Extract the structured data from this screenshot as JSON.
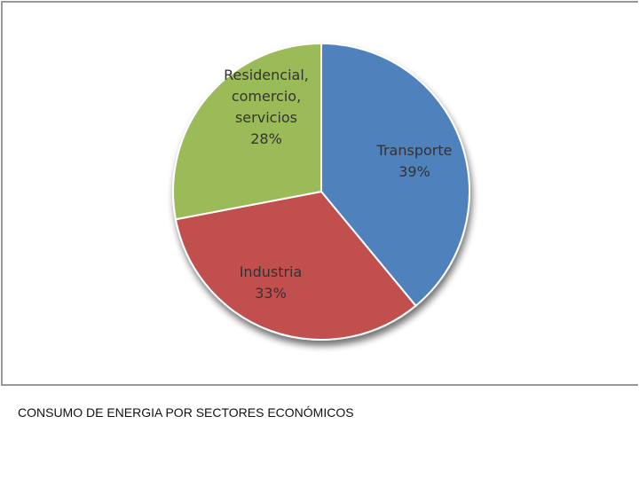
{
  "chart_data": {
    "type": "pie",
    "start_angle_deg": 0,
    "direction": "clockwise",
    "slices": [
      {
        "label_lines": [
          "Transporte",
          "39%"
        ],
        "value": 39,
        "color": "#4f81bd"
      },
      {
        "label_lines": [
          "Industria",
          "33%"
        ],
        "value": 33,
        "color": "#c0504d"
      },
      {
        "label_lines": [
          "Residencial,",
          "comercio,",
          "servicios",
          "28%"
        ],
        "value": 28,
        "color": "#9bbb59"
      }
    ]
  },
  "caption": "CONSUMO DE ENERGIA POR SECTORES ECONÓMICOS"
}
